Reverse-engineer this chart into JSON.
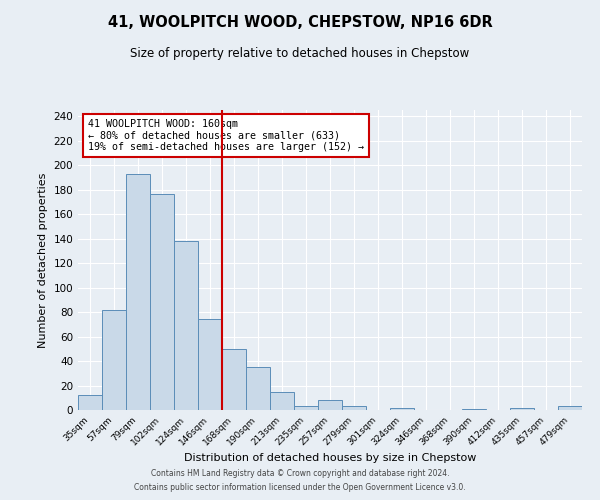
{
  "title": "41, WOOLPITCH WOOD, CHEPSTOW, NP16 6DR",
  "subtitle": "Size of property relative to detached houses in Chepstow",
  "xlabel": "Distribution of detached houses by size in Chepstow",
  "ylabel": "Number of detached properties",
  "bar_labels": [
    "35sqm",
    "57sqm",
    "79sqm",
    "102sqm",
    "124sqm",
    "146sqm",
    "168sqm",
    "190sqm",
    "213sqm",
    "235sqm",
    "257sqm",
    "279sqm",
    "301sqm",
    "324sqm",
    "346sqm",
    "368sqm",
    "390sqm",
    "412sqm",
    "435sqm",
    "457sqm",
    "479sqm"
  ],
  "bar_values": [
    12,
    82,
    193,
    176,
    138,
    74,
    50,
    35,
    15,
    3,
    8,
    3,
    0,
    2,
    0,
    0,
    1,
    0,
    2,
    0,
    3
  ],
  "bar_color": "#c9d9e8",
  "bar_edge_color": "#5b8db8",
  "vline_x": 6.0,
  "vline_color": "#cc0000",
  "annotation_title": "41 WOOLPITCH WOOD: 160sqm",
  "annotation_line1": "← 80% of detached houses are smaller (633)",
  "annotation_line2": "19% of semi-detached houses are larger (152) →",
  "annotation_box_color": "#cc0000",
  "ylim": [
    0,
    245
  ],
  "yticks": [
    0,
    20,
    40,
    60,
    80,
    100,
    120,
    140,
    160,
    180,
    200,
    220,
    240
  ],
  "background_color": "#e8eef4",
  "plot_bg_color": "#e8eef4",
  "footer_line1": "Contains HM Land Registry data © Crown copyright and database right 2024.",
  "footer_line2": "Contains public sector information licensed under the Open Government Licence v3.0."
}
